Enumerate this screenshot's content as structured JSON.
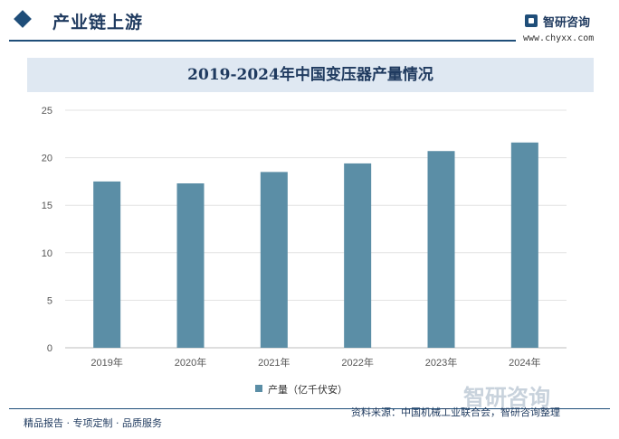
{
  "header": {
    "section_title": "产业链上游",
    "brand_name": "智研咨询",
    "brand_url": "www.chyxx.com"
  },
  "chart_data": {
    "type": "bar",
    "title": "2019-2024年中国变压器产量情况",
    "categories": [
      "2019年",
      "2020年",
      "2021年",
      "2022年",
      "2023年",
      "2024年"
    ],
    "series": [
      {
        "name": "产量（亿千伏安）",
        "values": [
          17.5,
          17.3,
          18.5,
          19.4,
          20.7,
          21.6
        ],
        "color": "#5b8ea6"
      }
    ],
    "ylim": [
      0,
      25
    ],
    "yticks": [
      0,
      5,
      10,
      15,
      20,
      25
    ],
    "grid": true,
    "legend": "bottom"
  },
  "footer": {
    "left_text": "精品报告 · 专项定制 · 品质服务",
    "source_text": "资料来源：中国机械工业联合会，智研咨询整理",
    "watermark": "智研咨询"
  }
}
